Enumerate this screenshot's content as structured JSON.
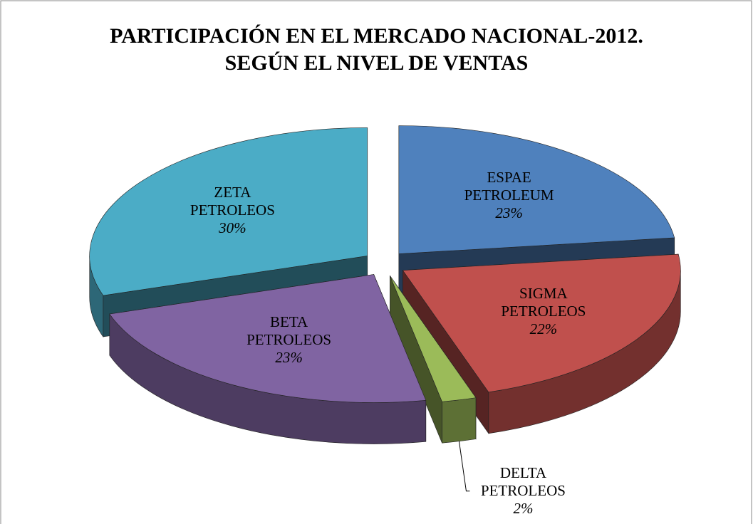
{
  "chart_data": {
    "type": "pie3d",
    "title": "PARTICIPACIÓN EN EL MERCADO NACIONAL-2012.",
    "subtitle": "SEGÚN EL NIVEL DE VENTAS",
    "categories": [
      "ESPAE PETROLEUM",
      "SIGMA PETROLEOS",
      "DELTA PETROLEOS",
      "BETA PETROLEOS",
      "ZETA PETROLEOS"
    ],
    "values": [
      23,
      22,
      2,
      23,
      30
    ],
    "value_labels": [
      "23%",
      "22%",
      "2%",
      "23%",
      "30%"
    ],
    "colors": [
      "#4f81bd",
      "#c0504d",
      "#9bbb59",
      "#8064a2",
      "#4bacc6"
    ]
  }
}
